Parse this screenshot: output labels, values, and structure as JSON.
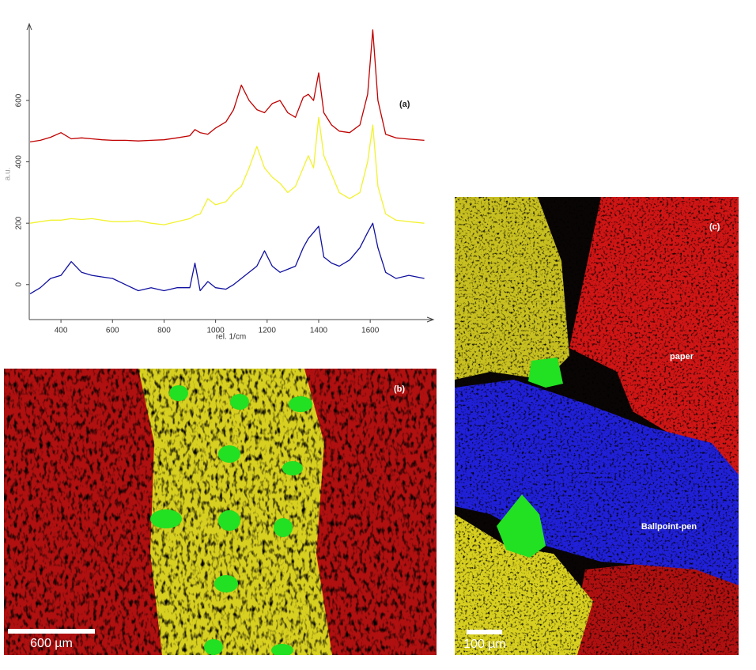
{
  "chart_data": {
    "type": "line",
    "title": "(a)",
    "x_label": "rel. 1/cm",
    "y_label": "a.u.",
    "x": [
      280,
      320,
      360,
      400,
      440,
      480,
      520,
      560,
      600,
      650,
      700,
      750,
      800,
      850,
      900,
      920,
      940,
      970,
      1000,
      1040,
      1070,
      1100,
      1130,
      1160,
      1190,
      1220,
      1250,
      1280,
      1310,
      1340,
      1360,
      1380,
      1400,
      1420,
      1450,
      1480,
      1520,
      1560,
      1590,
      1610,
      1630,
      1660,
      1700,
      1750,
      1810
    ],
    "series": [
      {
        "color": "#c00000",
        "values": [
          465,
          470,
          480,
          495,
          475,
          478,
          475,
          472,
          470,
          470,
          468,
          470,
          472,
          478,
          485,
          505,
          495,
          490,
          510,
          530,
          570,
          650,
          600,
          570,
          560,
          590,
          600,
          560,
          545,
          610,
          620,
          600,
          690,
          560,
          520,
          500,
          495,
          520,
          620,
          830,
          600,
          490,
          478,
          474,
          470
        ]
      },
      {
        "color": "#f2f230",
        "values": [
          200,
          205,
          210,
          210,
          215,
          212,
          215,
          210,
          205,
          205,
          208,
          200,
          195,
          205,
          215,
          225,
          230,
          280,
          260,
          270,
          300,
          320,
          380,
          450,
          380,
          350,
          330,
          300,
          320,
          380,
          420,
          380,
          545,
          420,
          360,
          300,
          280,
          300,
          400,
          520,
          320,
          230,
          210,
          205,
          200
        ]
      },
      {
        "color": "#1010a0",
        "values": [
          -30,
          -10,
          20,
          30,
          75,
          40,
          30,
          25,
          20,
          0,
          -20,
          -10,
          -20,
          -10,
          -10,
          70,
          -20,
          10,
          -10,
          -15,
          0,
          20,
          40,
          60,
          110,
          60,
          40,
          50,
          60,
          120,
          150,
          170,
          190,
          90,
          70,
          60,
          80,
          120,
          170,
          200,
          120,
          40,
          20,
          30,
          20
        ]
      }
    ],
    "xlim": [
      277,
      1845
    ],
    "ylim": [
      -114,
      850
    ],
    "xticks": [
      400,
      600,
      800,
      1000,
      1200,
      1400,
      1600
    ],
    "yticks": [
      0,
      200,
      400,
      600
    ],
    "grid": false
  },
  "panels": {
    "b": {
      "label": "(b)",
      "scale_bar": "600 µm"
    },
    "c": {
      "label": "(c)",
      "scale_bar": "100 µm",
      "annotations": [
        "paper",
        "Ballpoint-pen"
      ]
    }
  }
}
